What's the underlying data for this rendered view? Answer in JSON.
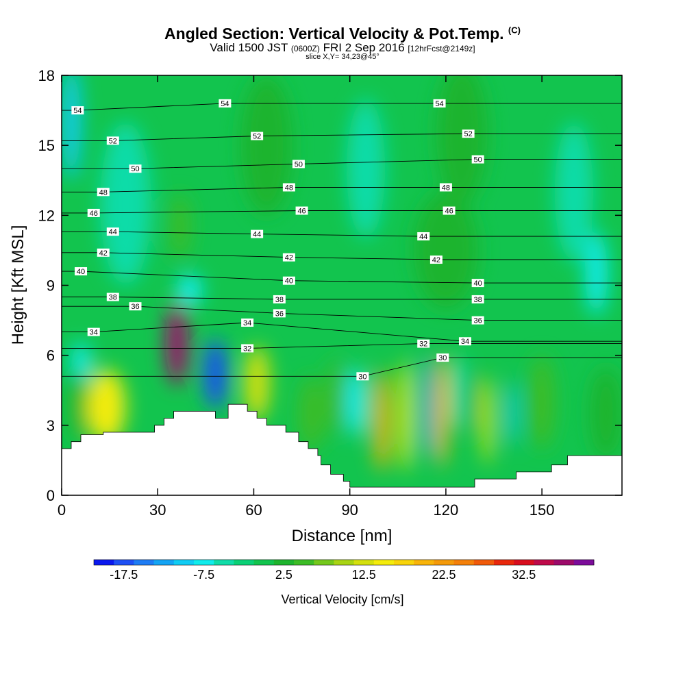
{
  "header": {
    "title": "Angled Section: Vertical Velocity & Pot.Temp.",
    "title_units": "(C)",
    "valid_prefix": "Valid 1500 JST",
    "valid_utc": "(0600Z)",
    "valid_date": "FRI 2 Sep 2016",
    "forecast": "[12hrFcst@2149z]",
    "slice": "slice X,Y= 34,23@45°"
  },
  "chart_data": {
    "type": "heatmap",
    "xlabel": "Distance [nm]",
    "ylabel": "Height [Kft MSL]",
    "xlim": [
      0,
      175
    ],
    "ylim": [
      0,
      18
    ],
    "x_ticks": [
      "0",
      "30",
      "60",
      "90",
      "120",
      "150"
    ],
    "y_ticks": [
      "0",
      "3",
      "6",
      "9",
      "12",
      "15",
      "18"
    ],
    "colorbar": {
      "label": "Vertical Velocity [cm/s]",
      "tick_labels": [
        "-17.5",
        "-7.5",
        "2.5",
        "12.5",
        "22.5",
        "32.5"
      ],
      "levels_start": -20,
      "levels_step": 2.5,
      "colors": [
        "#0a18ee",
        "#1e50f4",
        "#1e7cf4",
        "#14a4f4",
        "#10ccf4",
        "#10ecec",
        "#10dca8",
        "#0ad076",
        "#12c44e",
        "#1eb42e",
        "#3cbc26",
        "#74c81c",
        "#a8d414",
        "#d4e00e",
        "#f4ec0c",
        "#f8d40a",
        "#f8b40a",
        "#f49a0a",
        "#f4800a",
        "#f05a0a",
        "#e8280c",
        "#d80e1e",
        "#be0a4a",
        "#9c0a6a",
        "#7c0c9a"
      ]
    },
    "theta_labels": [
      {
        "x": 5,
        "y": 16.5,
        "value": "54"
      },
      {
        "x": 51,
        "y": 16.8,
        "value": "54"
      },
      {
        "x": 118,
        "y": 16.8,
        "value": "54"
      },
      {
        "x": 16,
        "y": 15.2,
        "value": "52"
      },
      {
        "x": 61,
        "y": 15.4,
        "value": "52"
      },
      {
        "x": 127,
        "y": 15.5,
        "value": "52"
      },
      {
        "x": 23,
        "y": 14.0,
        "value": "50"
      },
      {
        "x": 74,
        "y": 14.2,
        "value": "50"
      },
      {
        "x": 130,
        "y": 14.4,
        "value": "50"
      },
      {
        "x": 13,
        "y": 13.0,
        "value": "48"
      },
      {
        "x": 71,
        "y": 13.2,
        "value": "48"
      },
      {
        "x": 120,
        "y": 13.2,
        "value": "48"
      },
      {
        "x": 10,
        "y": 12.1,
        "value": "46"
      },
      {
        "x": 75,
        "y": 12.2,
        "value": "46"
      },
      {
        "x": 121,
        "y": 12.2,
        "value": "46"
      },
      {
        "x": 16,
        "y": 11.3,
        "value": "44"
      },
      {
        "x": 61,
        "y": 11.2,
        "value": "44"
      },
      {
        "x": 113,
        "y": 11.1,
        "value": "44"
      },
      {
        "x": 13,
        "y": 10.4,
        "value": "42"
      },
      {
        "x": 71,
        "y": 10.2,
        "value": "42"
      },
      {
        "x": 117,
        "y": 10.1,
        "value": "42"
      },
      {
        "x": 6,
        "y": 9.6,
        "value": "40"
      },
      {
        "x": 71,
        "y": 9.2,
        "value": "40"
      },
      {
        "x": 130,
        "y": 9.1,
        "value": "40"
      },
      {
        "x": 16,
        "y": 8.5,
        "value": "38"
      },
      {
        "x": 68,
        "y": 8.4,
        "value": "38"
      },
      {
        "x": 130,
        "y": 8.4,
        "value": "38"
      },
      {
        "x": 23,
        "y": 8.1,
        "value": "36"
      },
      {
        "x": 68,
        "y": 7.8,
        "value": "36"
      },
      {
        "x": 130,
        "y": 7.5,
        "value": "36"
      },
      {
        "x": 10,
        "y": 7.0,
        "value": "34"
      },
      {
        "x": 58,
        "y": 7.4,
        "value": "34"
      },
      {
        "x": 126,
        "y": 6.6,
        "value": "34"
      },
      {
        "x": 58,
        "y": 6.3,
        "value": "32"
      },
      {
        "x": 113,
        "y": 6.5,
        "value": "32"
      },
      {
        "x": 94,
        "y": 5.1,
        "value": "30"
      },
      {
        "x": 119,
        "y": 5.9,
        "value": "30"
      }
    ],
    "cells": [
      {
        "x": 36,
        "y": 6.5,
        "w": 3.5,
        "h": 1.8,
        "value": 38
      },
      {
        "x": 48,
        "y": 5.2,
        "w": 3.5,
        "h": 1.5,
        "value": -17
      },
      {
        "x": 14,
        "y": 3.8,
        "w": 6,
        "h": 1.6,
        "value": 15
      },
      {
        "x": 61,
        "y": 4.8,
        "w": 4,
        "h": 1.6,
        "value": 14
      },
      {
        "x": 100,
        "y": 3.2,
        "w": 2.5,
        "h": 2.2,
        "value": 22
      },
      {
        "x": 107.5,
        "y": 3.4,
        "w": 2.0,
        "h": 2.4,
        "value": 17
      },
      {
        "x": 114,
        "y": 3.8,
        "w": 1.4,
        "h": 2.2,
        "value": -12
      },
      {
        "x": 118.5,
        "y": 3.6,
        "w": 2.2,
        "h": 2.4,
        "value": 20
      },
      {
        "x": 133,
        "y": 3.2,
        "w": 1.5,
        "h": 1.9,
        "value": 16
      },
      {
        "x": 140.5,
        "y": 3.5,
        "w": 1.5,
        "h": 1.4,
        "value": -10
      },
      {
        "x": 3,
        "y": 16.0,
        "w": 3,
        "h": 2.5,
        "value": -8
      },
      {
        "x": 6,
        "y": 5.6,
        "w": 3,
        "h": 1.0,
        "value": -6
      },
      {
        "x": 5,
        "y": 3.8,
        "w": 3,
        "h": 1.5,
        "value": 4
      },
      {
        "x": 37,
        "y": 11.5,
        "w": 3,
        "h": 1.4,
        "value": 5
      },
      {
        "x": 40,
        "y": 8.8,
        "w": 4,
        "h": 0.7,
        "value": -6
      },
      {
        "x": 78,
        "y": 3.5,
        "w": 4,
        "h": 1.6,
        "value": 7
      },
      {
        "x": 86,
        "y": 4.2,
        "w": 3,
        "h": 1.6,
        "value": 5
      },
      {
        "x": 92,
        "y": 4.0,
        "w": 3,
        "h": 1.5,
        "value": -6
      },
      {
        "x": 124,
        "y": 4.4,
        "w": 2.5,
        "h": 1.6,
        "value": -4
      },
      {
        "x": 128,
        "y": 4.0,
        "w": 2.0,
        "h": 1.4,
        "value": 4
      },
      {
        "x": 150,
        "y": 4.0,
        "w": 4,
        "h": 2.0,
        "value": 5
      },
      {
        "x": 170,
        "y": 3.5,
        "w": 5,
        "h": 2.0,
        "value": 4
      },
      {
        "x": 167,
        "y": 9.5,
        "w": 3.5,
        "h": 1.8,
        "value": -6
      },
      {
        "x": 64,
        "y": 15.0,
        "w": 8,
        "h": 3.0,
        "value": 4
      },
      {
        "x": 125,
        "y": 15.5,
        "w": 8,
        "h": 3.0,
        "value": 4
      },
      {
        "x": 95,
        "y": 14.0,
        "w": 6,
        "h": 3.0,
        "value": -3
      },
      {
        "x": 20,
        "y": 12.5,
        "w": 8,
        "h": 3.5,
        "value": -4
      },
      {
        "x": 120,
        "y": 10.5,
        "w": 10,
        "h": 2.5,
        "value": 3
      },
      {
        "x": 160,
        "y": 13.0,
        "w": 6,
        "h": 3.0,
        "value": -3
      }
    ],
    "terrain": [
      [
        0,
        2.0
      ],
      [
        3,
        2.0
      ],
      [
        3,
        2.3
      ],
      [
        6,
        2.3
      ],
      [
        6,
        2.6
      ],
      [
        13,
        2.6
      ],
      [
        13,
        2.7
      ],
      [
        29,
        2.7
      ],
      [
        29,
        3.0
      ],
      [
        32,
        3.0
      ],
      [
        32,
        3.3
      ],
      [
        35,
        3.3
      ],
      [
        35,
        3.6
      ],
      [
        48,
        3.6
      ],
      [
        48,
        3.3
      ],
      [
        52,
        3.3
      ],
      [
        52,
        3.9
      ],
      [
        58,
        3.9
      ],
      [
        58,
        3.6
      ],
      [
        61,
        3.6
      ],
      [
        61,
        3.3
      ],
      [
        64,
        3.3
      ],
      [
        64,
        3.0
      ],
      [
        70,
        3.0
      ],
      [
        70,
        2.7
      ],
      [
        74,
        2.7
      ],
      [
        74,
        2.3
      ],
      [
        77,
        2.3
      ],
      [
        77,
        2.0
      ],
      [
        80,
        2.0
      ],
      [
        80,
        1.7
      ],
      [
        81,
        1.7
      ],
      [
        81,
        1.3
      ],
      [
        84,
        1.3
      ],
      [
        84,
        0.9
      ],
      [
        88,
        0.9
      ],
      [
        88,
        0.6
      ],
      [
        90,
        0.6
      ],
      [
        90,
        0.35
      ],
      [
        129,
        0.35
      ],
      [
        129,
        0.7
      ],
      [
        142,
        0.7
      ],
      [
        142,
        1.0
      ],
      [
        153,
        1.0
      ],
      [
        153,
        1.3
      ],
      [
        158,
        1.3
      ],
      [
        158,
        1.7
      ],
      [
        175,
        1.7
      ]
    ]
  }
}
